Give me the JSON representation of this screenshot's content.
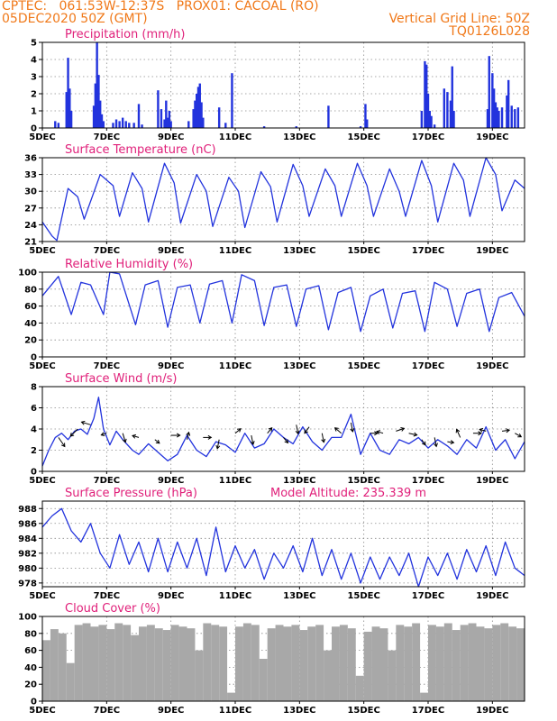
{
  "header": {
    "line1_left": "CPTEC:   061:53W-12:37S   PROX01: CACOAL (RO)",
    "line2_left": "05DEC2020 50Z (GMT)",
    "line2_right": "Vertical Grid Line: 50Z",
    "line3_right": "TQ0126L028"
  },
  "colors": {
    "header": "#f07818",
    "title": "#e0207a",
    "series": "#2233dd",
    "cloud": "#a8a8a8"
  },
  "x_axis": {
    "ticks": [
      "5DEC",
      "7DEC",
      "9DEC",
      "11DEC",
      "13DEC",
      "15DEC",
      "17DEC",
      "19DEC"
    ],
    "tick_days": [
      5,
      7,
      9,
      11,
      13,
      15,
      17,
      19
    ],
    "range_days": [
      5,
      20
    ]
  },
  "chart_data": [
    {
      "type": "bar",
      "title": "Precipitation (mm/h)",
      "ylim": [
        0,
        5
      ],
      "yticks": [
        "0",
        "1",
        "2",
        "3",
        "4",
        "5"
      ],
      "x": [
        5.4,
        5.5,
        5.75,
        5.8,
        5.85,
        5.9,
        6.6,
        6.65,
        6.7,
        6.75,
        6.8,
        6.85,
        6.9,
        7.2,
        7.3,
        7.4,
        7.5,
        7.6,
        7.7,
        7.85,
        8.0,
        8.1,
        8.6,
        8.7,
        8.8,
        8.85,
        8.9,
        8.95,
        9.0,
        9.55,
        9.7,
        9.75,
        9.8,
        9.85,
        9.9,
        9.95,
        10.0,
        10.5,
        10.7,
        10.9,
        11.9,
        12.9,
        13.9,
        14.9,
        15.05,
        15.1,
        16.8,
        16.9,
        16.95,
        17.0,
        17.05,
        17.1,
        17.2,
        17.5,
        17.6,
        17.7,
        17.75,
        17.8,
        18.85,
        18.9,
        19.0,
        19.05,
        19.1,
        19.15,
        19.2,
        19.3,
        19.45,
        19.5,
        19.6,
        19.7,
        19.8
      ],
      "values": [
        0.4,
        0.3,
        2.1,
        4.1,
        2.3,
        1.0,
        1.3,
        2.6,
        5.0,
        3.1,
        1.6,
        0.8,
        0.4,
        0.3,
        0.5,
        0.4,
        0.6,
        0.4,
        0.3,
        0.3,
        1.4,
        0.2,
        2.2,
        1.1,
        0.5,
        1.6,
        0.6,
        1.0,
        0.4,
        0.4,
        1.1,
        1.6,
        2.0,
        2.4,
        2.6,
        1.5,
        0.6,
        1.2,
        0.3,
        3.2,
        0.1,
        0.1,
        1.3,
        0.1,
        1.4,
        0.5,
        1.0,
        3.9,
        3.7,
        2.0,
        1.0,
        0.7,
        0.2,
        2.3,
        2.1,
        1.6,
        3.6,
        1.0,
        1.1,
        4.2,
        3.2,
        2.3,
        1.5,
        1.2,
        1.0,
        1.2,
        1.9,
        2.8,
        1.3,
        1.1,
        1.2
      ]
    },
    {
      "type": "line",
      "title": "Surface Temperature (nC)",
      "ylim": [
        21,
        36
      ],
      "yticks": [
        "21",
        "24",
        "27",
        "30",
        "33",
        "36"
      ],
      "x": [
        5.0,
        5.3,
        5.45,
        5.8,
        6.1,
        6.3,
        6.8,
        7.2,
        7.4,
        7.8,
        8.1,
        8.3,
        8.8,
        9.1,
        9.3,
        9.8,
        10.1,
        10.3,
        10.8,
        11.1,
        11.3,
        11.8,
        12.1,
        12.3,
        12.8,
        13.1,
        13.3,
        13.8,
        14.1,
        14.3,
        14.8,
        15.1,
        15.3,
        15.8,
        16.1,
        16.3,
        16.8,
        17.1,
        17.3,
        17.8,
        18.1,
        18.3,
        18.8,
        19.1,
        19.3,
        19.7,
        20.0
      ],
      "values": [
        24.5,
        22.0,
        21.2,
        30.5,
        29.0,
        25.0,
        33.0,
        31.0,
        25.5,
        33.3,
        30.5,
        24.5,
        35.0,
        31.5,
        24.3,
        33.0,
        30.0,
        23.7,
        32.5,
        30.0,
        23.5,
        33.5,
        30.8,
        24.5,
        34.8,
        31.0,
        25.5,
        34.0,
        31.0,
        25.5,
        35.0,
        31.0,
        25.5,
        34.0,
        30.0,
        25.5,
        35.5,
        31.0,
        24.5,
        35.0,
        32.0,
        25.5,
        36.0,
        33.0,
        26.5,
        32.0,
        30.5
      ]
    },
    {
      "type": "line",
      "title": "Relative Humidity (%)",
      "ylim": [
        0,
        100
      ],
      "yticks": [
        "0",
        "20",
        "40",
        "60",
        "80",
        "100"
      ],
      "x": [
        5.0,
        5.5,
        5.9,
        6.2,
        6.5,
        6.9,
        7.1,
        7.4,
        7.9,
        8.2,
        8.6,
        8.9,
        9.2,
        9.6,
        9.9,
        10.2,
        10.6,
        10.9,
        11.2,
        11.6,
        11.9,
        12.2,
        12.6,
        12.9,
        13.2,
        13.6,
        13.9,
        14.2,
        14.6,
        14.9,
        15.2,
        15.6,
        15.9,
        16.2,
        16.6,
        16.9,
        17.2,
        17.6,
        17.9,
        18.2,
        18.6,
        18.9,
        19.2,
        19.6,
        20.0
      ],
      "values": [
        72.0,
        95.0,
        50.0,
        88.0,
        85.0,
        50.0,
        100.0,
        98.0,
        38.0,
        85.0,
        90.0,
        35.0,
        82.0,
        85.0,
        40.0,
        86.0,
        90.0,
        40.0,
        97.0,
        90.0,
        37.0,
        82.0,
        85.0,
        36.0,
        80.0,
        84.0,
        32.0,
        76.0,
        82.0,
        30.0,
        72.0,
        80.0,
        34.0,
        75.0,
        78.0,
        30.0,
        88.0,
        80.0,
        36.0,
        75.0,
        80.0,
        30.0,
        70.0,
        76.0,
        48.0
      ]
    },
    {
      "type": "line",
      "title": "Surface Wind (m/s)",
      "ylim": [
        0,
        8
      ],
      "yticks": [
        "0",
        "2",
        "4",
        "6",
        "8"
      ],
      "x": [
        5.0,
        5.2,
        5.4,
        5.6,
        5.8,
        6.0,
        6.2,
        6.4,
        6.6,
        6.75,
        6.9,
        7.1,
        7.3,
        7.5,
        7.8,
        8.0,
        8.3,
        8.6,
        8.9,
        9.2,
        9.5,
        9.8,
        10.1,
        10.4,
        10.7,
        11.0,
        11.3,
        11.6,
        11.9,
        12.2,
        12.5,
        12.8,
        13.1,
        13.4,
        13.7,
        14.0,
        14.3,
        14.6,
        14.9,
        15.2,
        15.5,
        15.8,
        16.1,
        16.4,
        16.7,
        17.0,
        17.3,
        17.6,
        17.9,
        18.2,
        18.5,
        18.8,
        19.1,
        19.4,
        19.7,
        20.0
      ],
      "values": [
        0.5,
        2.0,
        3.2,
        3.6,
        3.0,
        3.8,
        4.0,
        3.5,
        5.0,
        7.0,
        4.0,
        2.5,
        3.8,
        3.0,
        2.0,
        1.6,
        2.6,
        1.8,
        1.0,
        1.6,
        3.4,
        2.0,
        1.4,
        2.8,
        2.5,
        1.8,
        3.6,
        2.2,
        2.6,
        4.0,
        3.2,
        2.6,
        4.2,
        2.8,
        2.0,
        3.2,
        3.2,
        5.4,
        1.6,
        3.6,
        2.0,
        1.6,
        3.0,
        2.6,
        3.2,
        2.2,
        3.0,
        2.4,
        1.6,
        3.0,
        2.2,
        4.2,
        2.0,
        3.0,
        1.2,
        2.8
      ]
    },
    {
      "type": "line",
      "title": "Surface Pressure (hPa)",
      "subtitle": "Model Altitude: 235.339 m",
      "ylim": [
        977.5,
        989
      ],
      "yticks": [
        "978",
        "980",
        "982",
        "984",
        "986",
        "988"
      ],
      "x": [
        5.0,
        5.3,
        5.6,
        5.9,
        6.2,
        6.5,
        6.8,
        7.1,
        7.4,
        7.7,
        8.0,
        8.3,
        8.6,
        8.9,
        9.2,
        9.5,
        9.8,
        10.1,
        10.4,
        10.7,
        11.0,
        11.3,
        11.6,
        11.9,
        12.2,
        12.5,
        12.8,
        13.1,
        13.4,
        13.7,
        14.0,
        14.3,
        14.6,
        14.9,
        15.2,
        15.5,
        15.8,
        16.1,
        16.4,
        16.7,
        17.0,
        17.3,
        17.6,
        17.9,
        18.2,
        18.5,
        18.8,
        19.1,
        19.4,
        19.7,
        20.0
      ],
      "values": [
        985.5,
        987.0,
        988.0,
        985.0,
        983.5,
        986.0,
        982.0,
        980.0,
        984.5,
        980.5,
        983.5,
        979.5,
        984.0,
        979.5,
        983.5,
        980.0,
        984.0,
        979.0,
        985.5,
        979.5,
        983.0,
        980.0,
        982.5,
        978.5,
        982.0,
        980.0,
        983.0,
        979.5,
        984.0,
        979.0,
        982.5,
        978.5,
        982.0,
        978.0,
        981.5,
        978.5,
        981.5,
        979.0,
        982.0,
        977.5,
        981.5,
        979.0,
        982.0,
        978.5,
        982.5,
        979.5,
        983.0,
        979.0,
        983.5,
        980.0,
        979.0
      ]
    },
    {
      "type": "bar",
      "title": "Cloud Cover (%)",
      "ylim": [
        0,
        100
      ],
      "yticks": [
        "0",
        "20",
        "40",
        "60",
        "80",
        "100"
      ],
      "x": [
        5.0,
        5.25,
        5.5,
        5.75,
        6.0,
        6.25,
        6.5,
        6.75,
        7.0,
        7.25,
        7.5,
        7.75,
        8.0,
        8.25,
        8.5,
        8.75,
        9.0,
        9.25,
        9.5,
        9.75,
        10.0,
        10.25,
        10.5,
        10.75,
        11.0,
        11.25,
        11.5,
        11.75,
        12.0,
        12.25,
        12.5,
        12.75,
        13.0,
        13.25,
        13.5,
        13.75,
        14.0,
        14.25,
        14.5,
        14.75,
        15.0,
        15.25,
        15.5,
        15.75,
        16.0,
        16.25,
        16.5,
        16.75,
        17.0,
        17.25,
        17.5,
        17.75,
        18.0,
        18.25,
        18.5,
        18.75,
        19.0,
        19.25,
        19.5,
        19.75
      ],
      "values": [
        72,
        85,
        80,
        45,
        90,
        92,
        88,
        90,
        85,
        92,
        90,
        78,
        88,
        90,
        86,
        84,
        90,
        88,
        86,
        60,
        92,
        90,
        88,
        10,
        88,
        92,
        90,
        50,
        86,
        90,
        88,
        90,
        84,
        88,
        90,
        60,
        88,
        90,
        86,
        30,
        82,
        88,
        86,
        60,
        90,
        88,
        92,
        10,
        90,
        88,
        92,
        84,
        90,
        92,
        88,
        86,
        90,
        92,
        88,
        86
      ]
    }
  ],
  "wind_vectors": [
    {
      "x": 5.5,
      "speed": 3.2,
      "u": 0.7,
      "v": -1.0
    },
    {
      "x": 6.1,
      "speed": 4.0,
      "u": -0.8,
      "v": -0.8
    },
    {
      "x": 6.5,
      "speed": 4.4,
      "u": -1.0,
      "v": 0.3
    },
    {
      "x": 7.0,
      "speed": 3.6,
      "u": -0.6,
      "v": -0.2
    },
    {
      "x": 7.5,
      "speed": 3.6,
      "u": 0.3,
      "v": -1.0
    },
    {
      "x": 8.0,
      "speed": 3.2,
      "u": -0.7,
      "v": 0.2
    },
    {
      "x": 8.5,
      "speed": 3.0,
      "u": 0.5,
      "v": -0.4
    },
    {
      "x": 9.0,
      "speed": 3.4,
      "u": 1.0,
      "v": 0.0
    },
    {
      "x": 9.5,
      "speed": 3.0,
      "u": 0.2,
      "v": 0.8
    },
    {
      "x": 10.0,
      "speed": 3.2,
      "u": 0.9,
      "v": 0.0
    },
    {
      "x": 10.5,
      "speed": 3.0,
      "u": -0.2,
      "v": -1.0
    },
    {
      "x": 11.0,
      "speed": 3.6,
      "u": 0.6,
      "v": 0.5
    },
    {
      "x": 11.5,
      "speed": 3.4,
      "u": 0.2,
      "v": -1.0
    },
    {
      "x": 12.0,
      "speed": 3.6,
      "u": 0.5,
      "v": 0.6
    },
    {
      "x": 12.5,
      "speed": 3.2,
      "u": 0.5,
      "v": -0.6
    },
    {
      "x": 12.9,
      "speed": 4.4,
      "u": 0.2,
      "v": -1.0
    },
    {
      "x": 13.3,
      "speed": 4.2,
      "u": -0.5,
      "v": -0.7
    },
    {
      "x": 13.7,
      "speed": 3.6,
      "u": 0.2,
      "v": -1.0
    },
    {
      "x": 14.3,
      "speed": 3.6,
      "u": -0.7,
      "v": 0.6
    },
    {
      "x": 14.6,
      "speed": 4.6,
      "u": 0.2,
      "v": -1.0
    },
    {
      "x": 15.2,
      "speed": 3.6,
      "u": 0.8,
      "v": 0.0
    },
    {
      "x": 15.6,
      "speed": 3.6,
      "u": -0.7,
      "v": 0.2
    },
    {
      "x": 16.0,
      "speed": 3.8,
      "u": 0.9,
      "v": 0.3
    },
    {
      "x": 16.4,
      "speed": 3.6,
      "u": 0.9,
      "v": -0.2
    },
    {
      "x": 16.8,
      "speed": 3.0,
      "u": 0.4,
      "v": -0.6
    },
    {
      "x": 17.2,
      "speed": 3.2,
      "u": 0.2,
      "v": -1.0
    },
    {
      "x": 17.6,
      "speed": 2.8,
      "u": 0.7,
      "v": -0.1
    },
    {
      "x": 18.0,
      "speed": 3.2,
      "u": -0.4,
      "v": 0.9
    },
    {
      "x": 18.4,
      "speed": 3.6,
      "u": 0.9,
      "v": 0.0
    },
    {
      "x": 18.8,
      "speed": 3.8,
      "u": -0.7,
      "v": 0.2
    },
    {
      "x": 19.3,
      "speed": 3.8,
      "u": 0.8,
      "v": 0.1
    },
    {
      "x": 19.7,
      "speed": 3.6,
      "u": 0.7,
      "v": -0.4
    }
  ]
}
